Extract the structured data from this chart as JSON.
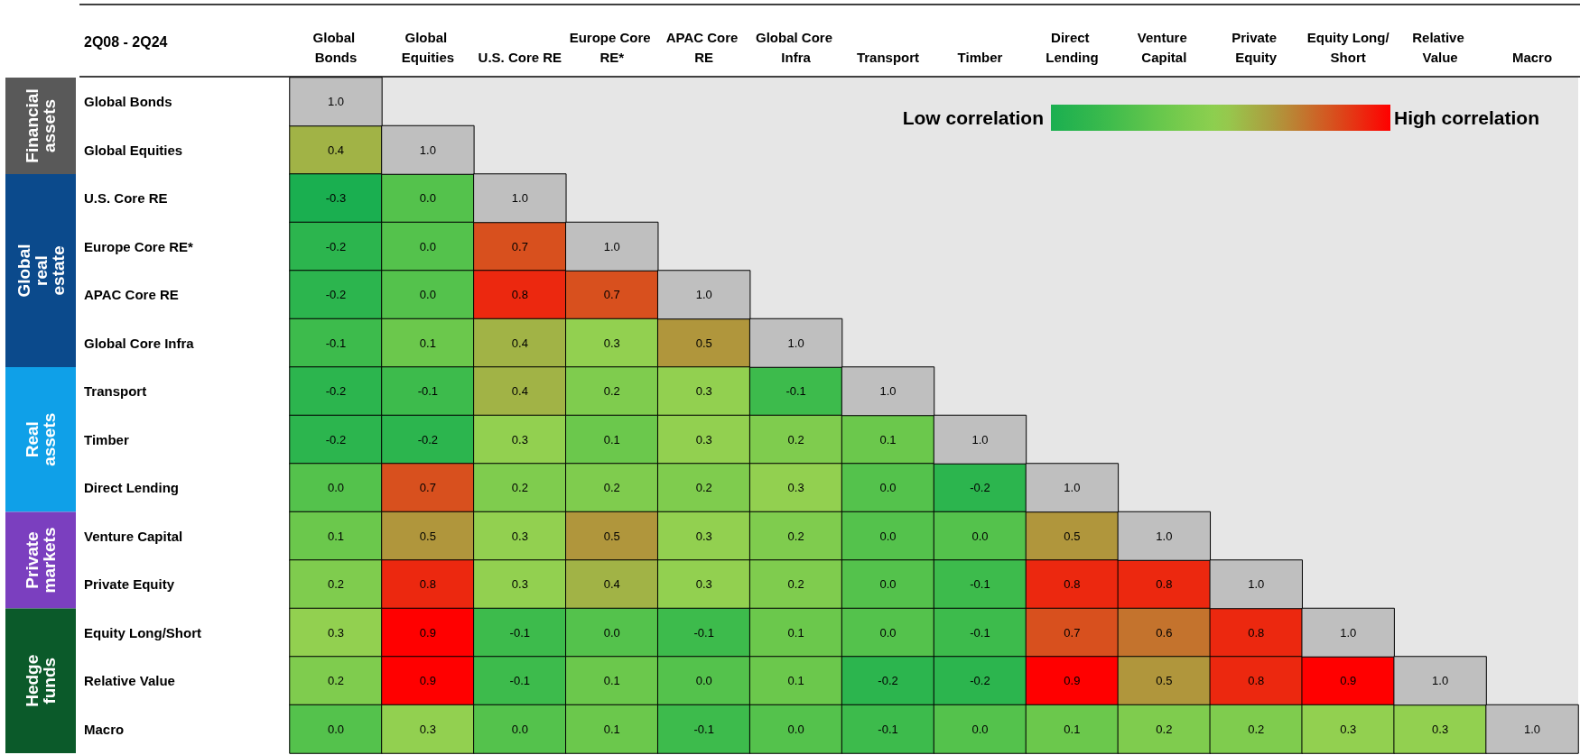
{
  "chart_data": {
    "type": "heatmap",
    "title": "2Q08 - 2Q24",
    "categories": [
      "Global Bonds",
      "Global Equities",
      "U.S. Core RE",
      "Europe Core RE*",
      "APAC Core RE",
      "Global Core Infra",
      "Transport",
      "Timber",
      "Direct Lending",
      "Venture Capital",
      "Private Equity",
      "Equity Long/Short",
      "Relative Value",
      "Macro"
    ],
    "y_categories": [
      "Global Bonds",
      "Global Equities",
      "U.S. Core RE",
      "Europe Core RE*",
      "APAC Core RE",
      "Global Core Infra",
      "Transport",
      "Timber",
      "Direct Lending",
      "Venture Capital",
      "Private Equity",
      "Equity Long/Short",
      "Relative Value",
      "Macro"
    ],
    "cells": [
      [
        1.0,
        null,
        null,
        null,
        null,
        null,
        null,
        null,
        null,
        null,
        null,
        null,
        null,
        null
      ],
      [
        0.4,
        1.0,
        null,
        null,
        null,
        null,
        null,
        null,
        null,
        null,
        null,
        null,
        null,
        null
      ],
      [
        -0.3,
        0.0,
        1.0,
        null,
        null,
        null,
        null,
        null,
        null,
        null,
        null,
        null,
        null,
        null
      ],
      [
        -0.2,
        0.0,
        0.7,
        1.0,
        null,
        null,
        null,
        null,
        null,
        null,
        null,
        null,
        null,
        null
      ],
      [
        -0.2,
        0.0,
        0.8,
        0.7,
        1.0,
        null,
        null,
        null,
        null,
        null,
        null,
        null,
        null,
        null
      ],
      [
        -0.1,
        0.1,
        0.4,
        0.3,
        0.5,
        1.0,
        null,
        null,
        null,
        null,
        null,
        null,
        null,
        null
      ],
      [
        -0.2,
        -0.1,
        0.4,
        0.2,
        0.3,
        -0.1,
        1.0,
        null,
        null,
        null,
        null,
        null,
        null,
        null
      ],
      [
        -0.2,
        -0.2,
        0.3,
        0.1,
        0.3,
        0.2,
        0.1,
        1.0,
        null,
        null,
        null,
        null,
        null,
        null
      ],
      [
        0.0,
        0.7,
        0.2,
        0.2,
        0.2,
        0.3,
        0.0,
        -0.2,
        1.0,
        null,
        null,
        null,
        null,
        null
      ],
      [
        0.1,
        0.5,
        0.3,
        0.5,
        0.3,
        0.2,
        0.0,
        0.0,
        0.5,
        1.0,
        null,
        null,
        null,
        null
      ],
      [
        0.2,
        0.8,
        0.3,
        0.4,
        0.3,
        0.2,
        0.0,
        -0.1,
        0.8,
        0.8,
        1.0,
        null,
        null,
        null
      ],
      [
        0.3,
        0.9,
        -0.1,
        0.0,
        -0.1,
        0.1,
        0.0,
        -0.1,
        0.7,
        0.6,
        0.8,
        1.0,
        null,
        null
      ],
      [
        0.2,
        0.9,
        -0.1,
        0.1,
        0.0,
        0.1,
        -0.2,
        -0.2,
        0.9,
        0.5,
        0.8,
        0.9,
        1.0,
        null
      ],
      [
        0.0,
        0.3,
        0.0,
        0.1,
        -0.1,
        0.0,
        -0.1,
        0.0,
        0.1,
        0.2,
        0.2,
        0.3,
        0.3,
        1.0
      ]
    ],
    "cell_labels": [
      [
        "1.0",
        null,
        null,
        null,
        null,
        null,
        null,
        null,
        null,
        null,
        null,
        null,
        null,
        null
      ],
      [
        "0.4",
        "1.0",
        null,
        null,
        null,
        null,
        null,
        null,
        null,
        null,
        null,
        null,
        null,
        null
      ],
      [
        "-0.3",
        "0.0",
        "1.0",
        null,
        null,
        null,
        null,
        null,
        null,
        null,
        null,
        null,
        null,
        null
      ],
      [
        "-0.2",
        "0.0",
        "0.7",
        "1.0",
        null,
        null,
        null,
        null,
        null,
        null,
        null,
        null,
        null,
        null
      ],
      [
        "-0.2",
        "0.0",
        "0.8",
        "0.7",
        "1.0",
        null,
        null,
        null,
        null,
        null,
        null,
        null,
        null,
        null
      ],
      [
        "-0.1",
        "0.1",
        "0.4",
        "0.3",
        "0.5",
        "1.0",
        null,
        null,
        null,
        null,
        null,
        null,
        null,
        null
      ],
      [
        "-0.2",
        "-0.1",
        "0.4",
        "0.2",
        "0.3",
        "-0.1",
        "1.0",
        null,
        null,
        null,
        null,
        null,
        null,
        null
      ],
      [
        "-0.2",
        "-0.2",
        "0.3",
        "0.1",
        "0.3",
        "0.2",
        "0.1",
        "1.0",
        null,
        null,
        null,
        null,
        null,
        null
      ],
      [
        "0.0",
        "0.7",
        "0.2",
        "0.2",
        "0.2",
        "0.3",
        "0.0",
        "-0.2",
        "1.0",
        null,
        null,
        null,
        null,
        null
      ],
      [
        "0.1",
        "0.5",
        "0.3",
        "0.5",
        "0.3",
        "0.2",
        "0.0",
        "0.0",
        "0.5",
        "1.0",
        null,
        null,
        null,
        null
      ],
      [
        "0.2",
        "0.8",
        "0.3",
        "0.4",
        "0.3",
        "0.2",
        "0.0",
        "-0.1",
        "0.8",
        "0.8",
        "1.0",
        null,
        null,
        null
      ],
      [
        "0.3",
        "0.9",
        "-0.1",
        "0.0",
        "-0.1",
        "0.1",
        "0.0",
        "-0.1",
        "0.7",
        "0.6",
        "0.8",
        "1.0",
        null,
        null
      ],
      [
        "0.2",
        "0.9",
        "-0.1",
        "0.1",
        "0.0",
        "0.1",
        "-0.2",
        "-0.2",
        "0.9",
        "0.5",
        "0.8",
        "0.9",
        "1.0",
        null
      ],
      [
        "0.0",
        "0.3",
        "0.0",
        "0.1",
        "-0.1",
        "0.0",
        "-0.1",
        "0.0",
        "0.1",
        "0.2",
        "0.2",
        "0.3",
        "0.3",
        "1.0"
      ]
    ],
    "colors": [
      "#1aaf50",
      "#3dbb4c",
      "#6bc84c",
      "#92d050",
      "#b0963c",
      "#d8501e",
      "#ff0000"
    ],
    "clabel": [
      "Low correlation",
      "High correlation"
    ],
    "data_labels": true,
    "annotations": [
      "Financial assets",
      "Global real estate",
      "Real assets",
      "Private markets",
      "Hedge funds"
    ]
  }
}
